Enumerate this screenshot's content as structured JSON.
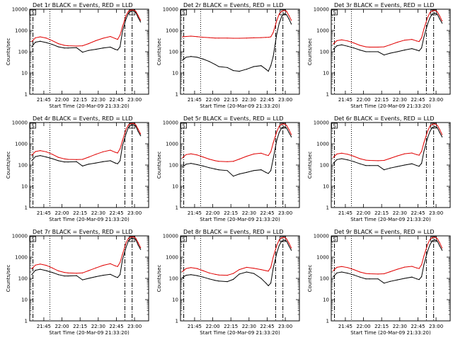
{
  "chart_data": {
    "type": "line",
    "scale": "log",
    "ylim": [
      1,
      10000
    ],
    "ytick_labels": [
      "1",
      "10",
      "100",
      "1000",
      "10000"
    ],
    "ylabel": "Counts/sec",
    "xlabel": "Start Time (20-Mar-09 21:33:20)",
    "xlim": [
      "21:33:20",
      "23:11:40"
    ],
    "series_colors": {
      "events": "#000000",
      "lld": "#e00000"
    },
    "markers": {
      "box_label": "S",
      "marker_color": "#000000"
    },
    "panels": [
      {
        "title": "Det 1r BLACK = Events, RED = LLD",
        "xticks": [
          "21:45",
          "22:00",
          "22:15",
          "22:30",
          "22:45",
          "23:00"
        ],
        "x": [
          "21:35",
          "21:38",
          "21:42",
          "21:47",
          "21:52",
          "21:57",
          "22:02",
          "22:05",
          "22:12",
          "22:17",
          "22:22",
          "22:28",
          "22:34",
          "22:40",
          "22:44",
          "22:46",
          "22:48",
          "22:50",
          "22:53",
          "22:55",
          "22:57",
          "22:59",
          "23:01",
          "23:03",
          "23:05"
        ],
        "events": [
          170,
          280,
          310,
          270,
          220,
          170,
          150,
          150,
          155,
          95,
          115,
          130,
          150,
          165,
          130,
          120,
          170,
          900,
          3500,
          6500,
          8000,
          8200,
          7000,
          4000,
          2500
        ],
        "lld": [
          300,
          450,
          500,
          440,
          330,
          240,
          200,
          190,
          185,
          190,
          240,
          330,
          430,
          520,
          420,
          380,
          600,
          1500,
          5000,
          8000,
          9000,
          9200,
          8000,
          5000,
          3000
        ]
      },
      {
        "title": "Det 2r BLACK = Events, RED = LLD",
        "xticks": [
          "21:45",
          "22:00",
          "22:15",
          "22:30",
          "22:45",
          "23:00"
        ],
        "x": [
          "21:35",
          "21:38",
          "21:42",
          "21:47",
          "21:52",
          "21:57",
          "22:02",
          "22:05",
          "22:12",
          "22:17",
          "22:22",
          "22:28",
          "22:34",
          "22:40",
          "22:44",
          "22:46",
          "22:48",
          "22:50",
          "22:53",
          "22:55",
          "22:57",
          "22:59",
          "23:01",
          "23:03",
          "23:05"
        ],
        "events": [
          40,
          55,
          60,
          55,
          45,
          35,
          25,
          20,
          18,
          13,
          12,
          15,
          20,
          22,
          15,
          12,
          22,
          60,
          700,
          2200,
          4500,
          6000,
          5500,
          3500,
          2000
        ],
        "lld": [
          500,
          520,
          540,
          510,
          480,
          460,
          440,
          440,
          440,
          430,
          430,
          440,
          450,
          460,
          470,
          480,
          500,
          800,
          3000,
          6000,
          8000,
          8800,
          8000,
          5000,
          3000
        ]
      },
      {
        "title": "Det 3r BLACK = Events, RED = LLD",
        "xticks": [
          "21:45",
          "22:00",
          "22:15",
          "22:30",
          "22:45",
          "23:00"
        ],
        "x": [
          "21:35",
          "21:38",
          "21:42",
          "21:47",
          "21:52",
          "21:57",
          "22:02",
          "22:05",
          "22:12",
          "22:17",
          "22:22",
          "22:28",
          "22:34",
          "22:40",
          "22:44",
          "22:46",
          "22:48",
          "22:50",
          "22:53",
          "22:55",
          "22:57",
          "22:59",
          "23:01",
          "23:03",
          "23:05"
        ],
        "events": [
          130,
          190,
          210,
          180,
          150,
          120,
          100,
          100,
          100,
          70,
          85,
          100,
          120,
          140,
          120,
          110,
          150,
          500,
          2000,
          4000,
          6000,
          6500,
          5800,
          3500,
          2200
        ],
        "lld": [
          230,
          330,
          360,
          320,
          260,
          200,
          170,
          165,
          165,
          170,
          210,
          280,
          350,
          380,
          320,
          300,
          450,
          1200,
          4000,
          7000,
          8500,
          8700,
          7500,
          4800,
          2800
        ]
      },
      {
        "title": "Det 4r BLACK = Events, RED = LLD",
        "xticks": [
          "21:45",
          "22:00",
          "22:15",
          "22:30",
          "22:45",
          "23:00"
        ],
        "x": [
          "21:35",
          "21:38",
          "21:42",
          "21:47",
          "21:52",
          "21:57",
          "22:02",
          "22:05",
          "22:12",
          "22:17",
          "22:22",
          "22:28",
          "22:34",
          "22:40",
          "22:44",
          "22:46",
          "22:48",
          "22:50",
          "22:53",
          "22:55",
          "22:57",
          "22:59",
          "23:01",
          "23:03",
          "23:05"
        ],
        "events": [
          160,
          250,
          280,
          240,
          200,
          160,
          140,
          140,
          145,
          90,
          110,
          125,
          145,
          160,
          125,
          115,
          160,
          800,
          3000,
          6000,
          7500,
          7800,
          6800,
          3800,
          2400
        ],
        "lld": [
          290,
          430,
          480,
          420,
          320,
          230,
          195,
          185,
          180,
          185,
          235,
          320,
          420,
          500,
          400,
          370,
          580,
          1400,
          4800,
          7800,
          8900,
          9100,
          7900,
          4900,
          2900
        ]
      },
      {
        "title": "Det 5r BLACK = Events, RED = LLD",
        "xticks": [
          "21:45",
          "22:00",
          "22:15",
          "22:30",
          "22:45",
          "23:00"
        ],
        "x": [
          "21:35",
          "21:38",
          "21:42",
          "21:47",
          "21:52",
          "21:57",
          "22:02",
          "22:05",
          "22:12",
          "22:17",
          "22:22",
          "22:28",
          "22:34",
          "22:40",
          "22:44",
          "22:46",
          "22:48",
          "22:50",
          "22:53",
          "22:55",
          "22:57",
          "22:59",
          "23:01",
          "23:03",
          "23:05"
        ],
        "events": [
          80,
          110,
          120,
          105,
          90,
          75,
          65,
          60,
          55,
          30,
          38,
          45,
          55,
          60,
          45,
          40,
          55,
          200,
          1500,
          3500,
          5500,
          6200,
          5600,
          3400,
          2100
        ],
        "lld": [
          220,
          310,
          340,
          300,
          240,
          190,
          160,
          150,
          145,
          150,
          190,
          260,
          330,
          360,
          300,
          280,
          420,
          1100,
          3800,
          6800,
          8400,
          8600,
          7400,
          4700,
          2700
        ]
      },
      {
        "title": "Det 6r BLACK = Events, RED = LLD",
        "xticks": [
          "21:45",
          "22:00",
          "22:15",
          "22:30",
          "22:45",
          "23:00"
        ],
        "x": [
          "21:35",
          "21:38",
          "21:42",
          "21:47",
          "21:52",
          "21:57",
          "22:02",
          "22:05",
          "22:12",
          "22:17",
          "22:22",
          "22:28",
          "22:34",
          "22:40",
          "22:44",
          "22:46",
          "22:48",
          "22:50",
          "22:53",
          "22:55",
          "22:57",
          "22:59",
          "23:01",
          "23:03",
          "23:05"
        ],
        "events": [
          120,
          180,
          200,
          175,
          145,
          115,
          95,
          95,
          95,
          60,
          72,
          85,
          100,
          115,
          95,
          88,
          120,
          450,
          1900,
          3900,
          5900,
          6400,
          5700,
          3400,
          2100
        ],
        "lld": [
          230,
          330,
          360,
          320,
          260,
          200,
          170,
          165,
          160,
          165,
          205,
          270,
          340,
          370,
          310,
          290,
          440,
          1150,
          3900,
          6900,
          8400,
          8600,
          7400,
          4700,
          2700
        ]
      },
      {
        "title": "Det 7r BLACK = Events, RED = LLD",
        "xticks": [
          "21:45",
          "22:00",
          "22:15",
          "22:30",
          "22:45",
          "23:00"
        ],
        "x": [
          "21:35",
          "21:38",
          "21:42",
          "21:47",
          "21:52",
          "21:57",
          "22:02",
          "22:05",
          "22:12",
          "22:17",
          "22:22",
          "22:28",
          "22:34",
          "22:40",
          "22:44",
          "22:46",
          "22:48",
          "22:50",
          "22:53",
          "22:55",
          "22:57",
          "22:59",
          "23:01",
          "23:03",
          "23:05"
        ],
        "events": [
          150,
          240,
          270,
          230,
          190,
          150,
          130,
          130,
          135,
          85,
          100,
          120,
          140,
          155,
          120,
          110,
          150,
          750,
          2900,
          5900,
          7400,
          7700,
          6700,
          3700,
          2300
        ],
        "lld": [
          280,
          420,
          470,
          410,
          310,
          225,
          190,
          180,
          175,
          180,
          230,
          310,
          410,
          490,
          390,
          360,
          560,
          1350,
          4700,
          7700,
          8800,
          9000,
          7800,
          4800,
          2800
        ]
      },
      {
        "title": "Det 8r BLACK = Events, RED = LLD",
        "xticks": [
          "21:45",
          "22:00",
          "22:15",
          "22:30",
          "22:45",
          "23:00"
        ],
        "x": [
          "21:35",
          "21:38",
          "21:42",
          "21:47",
          "21:52",
          "21:57",
          "22:02",
          "22:05",
          "22:12",
          "22:17",
          "22:22",
          "22:28",
          "22:34",
          "22:40",
          "22:44",
          "22:46",
          "22:48",
          "22:50",
          "22:53",
          "22:55",
          "22:57",
          "22:59",
          "23:01",
          "23:03",
          "23:05"
        ],
        "events": [
          110,
          140,
          150,
          135,
          115,
          95,
          80,
          75,
          70,
          90,
          160,
          200,
          170,
          100,
          60,
          45,
          60,
          300,
          1600,
          3600,
          5600,
          6300,
          5700,
          3400,
          2100
        ],
        "lld": [
          210,
          290,
          320,
          290,
          230,
          180,
          155,
          145,
          140,
          170,
          260,
          330,
          300,
          260,
          230,
          220,
          330,
          1000,
          3600,
          6600,
          8200,
          8500,
          7300,
          4600,
          2700
        ]
      },
      {
        "title": "Det 9r BLACK = Events, RED = LLD",
        "xticks": [
          "21:45",
          "22:00",
          "22:15",
          "22:30",
          "22:45",
          "23:00"
        ],
        "x": [
          "21:35",
          "21:38",
          "21:42",
          "21:47",
          "21:52",
          "21:57",
          "22:02",
          "22:05",
          "22:12",
          "22:17",
          "22:22",
          "22:28",
          "22:34",
          "22:40",
          "22:44",
          "22:46",
          "22:48",
          "22:50",
          "22:53",
          "22:55",
          "22:57",
          "22:59",
          "23:01",
          "23:03",
          "23:05"
        ],
        "events": [
          120,
          180,
          200,
          175,
          145,
          115,
          95,
          95,
          95,
          60,
          72,
          85,
          100,
          115,
          95,
          88,
          120,
          450,
          1900,
          3900,
          5900,
          6400,
          5700,
          3400,
          2100
        ],
        "lld": [
          230,
          330,
          360,
          320,
          260,
          200,
          170,
          165,
          160,
          165,
          205,
          270,
          340,
          370,
          310,
          290,
          440,
          1150,
          3900,
          6900,
          8400,
          8600,
          7400,
          4700,
          2700
        ]
      }
    ]
  }
}
